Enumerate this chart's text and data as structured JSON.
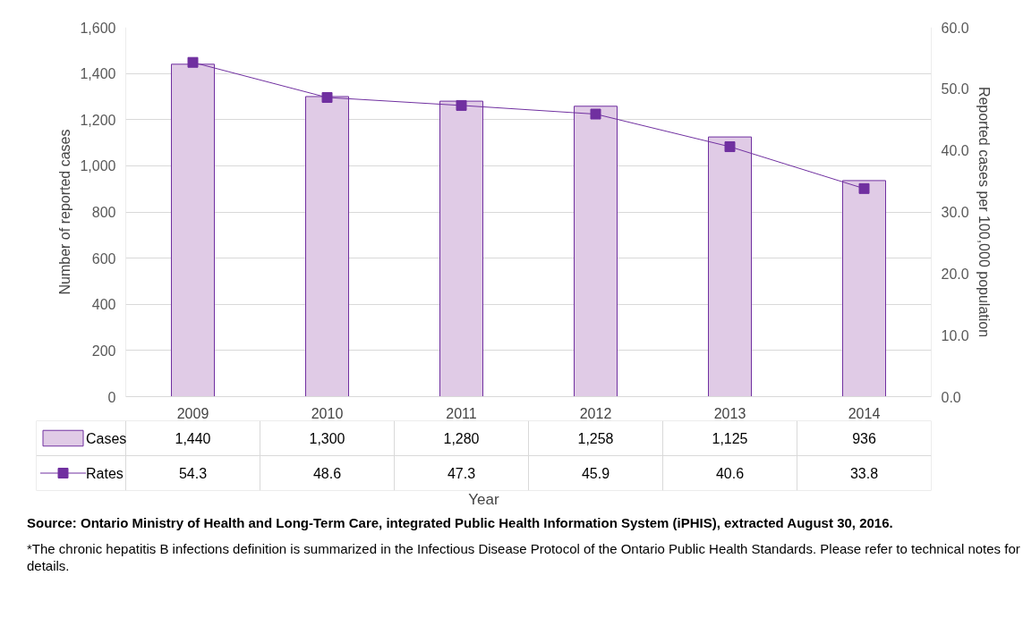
{
  "chart_data": {
    "type": "bar",
    "xlabel": "Year",
    "ylabel": "Number of reported cases",
    "y2label": "Reported cases per 100,000 population",
    "categories": [
      "2009",
      "2010",
      "2011",
      "2012",
      "2013",
      "2014"
    ],
    "series": [
      {
        "name": "Cases",
        "color": "#e0cbe6",
        "values": [
          1440,
          1300,
          1280,
          1258,
          1125,
          936
        ]
      },
      {
        "name": "Rates",
        "type": "line",
        "color": "#7030a0",
        "axis": "y2",
        "values": [
          54.3,
          48.6,
          47.3,
          45.9,
          40.6,
          33.8
        ]
      }
    ],
    "ylim": [
      0,
      1600
    ],
    "yticks": [
      {
        "value": 0,
        "label": "0"
      },
      {
        "value": 200,
        "label": "200"
      },
      {
        "value": 400,
        "label": "400"
      },
      {
        "value": 600,
        "label": "600"
      },
      {
        "value": 800,
        "label": "800"
      },
      {
        "value": 1000,
        "label": "1,000"
      },
      {
        "value": 1200,
        "label": "1,200"
      },
      {
        "value": 1400,
        "label": "1,400"
      },
      {
        "value": 1600,
        "label": "1,600"
      }
    ],
    "y2lim": [
      0,
      60
    ],
    "y2ticks": [
      {
        "value": 0,
        "label": "0.0"
      },
      {
        "value": 10,
        "label": "10.0"
      },
      {
        "value": 20,
        "label": "20.0"
      },
      {
        "value": 30,
        "label": "30.0"
      },
      {
        "value": 40,
        "label": "40.0"
      },
      {
        "value": 50,
        "label": "50.0"
      },
      {
        "value": 60,
        "label": "60.0"
      }
    ],
    "value_labels": [
      [
        "1,440",
        "1,300",
        "1,280",
        "1,258",
        "1,125",
        "936"
      ],
      [
        "54.3",
        "48.6",
        "47.3",
        "45.9",
        "40.6",
        "33.8"
      ]
    ],
    "grid": "y",
    "legend": "bottom",
    "marker": "square",
    "line_style": "solid",
    "annotations": [
      "Source: Ontario Ministry of Health and Long-Term Care, integrated Public Health Information System (iPHIS), extracted August 30, 2016.",
      "*The chronic hepatitis B infections definition is summarized in the Infectious Disease Protocol of the Ontario Public Health Standards.  Please refer to technical notes for details."
    ]
  }
}
